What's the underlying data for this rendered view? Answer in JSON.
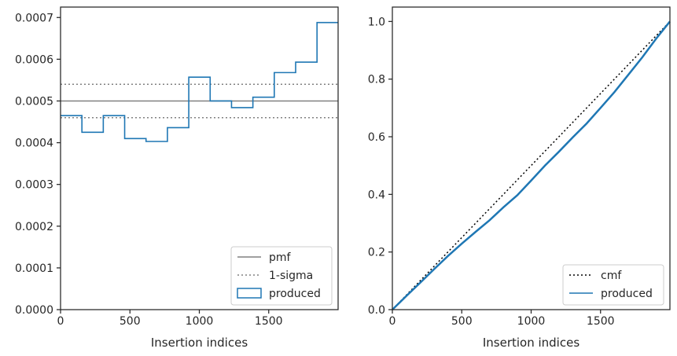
{
  "chart_data": [
    {
      "type": "step",
      "xlabel": "Insertion indices",
      "ylabel": "",
      "xlim": [
        0,
        2000
      ],
      "ylim": [
        0,
        0.000725
      ],
      "xticks": [
        0,
        500,
        1000,
        1500
      ],
      "xtick_labels": [
        "0",
        "500",
        "1000",
        "1500"
      ],
      "yticks": [
        0,
        0.0001,
        0.0002,
        0.0003,
        0.0004,
        0.0005,
        0.0006,
        0.0007
      ],
      "ytick_labels": [
        "0.0000",
        "0.0001",
        "0.0002",
        "0.0003",
        "0.0004",
        "0.0005",
        "0.0006",
        "0.0007"
      ],
      "legend_position": "lower right",
      "series": [
        {
          "name": "pmf",
          "kind": "hline",
          "value": 0.0005,
          "color": "#808080",
          "style": "solid"
        },
        {
          "name": "1-sigma",
          "kind": "hlines",
          "values": [
            0.00054,
            0.00046
          ],
          "color": "#808080",
          "style": "dotted"
        },
        {
          "name": "produced",
          "kind": "step",
          "color": "#1f77b4",
          "bin_edges": [
            0,
            154,
            308,
            462,
            616,
            770,
            924,
            1078,
            1232,
            1386,
            1540,
            1694,
            1848,
            2000
          ],
          "values": [
            0.000465,
            0.000425,
            0.000465,
            0.00041,
            0.000403,
            0.000436,
            0.000557,
            0.0005,
            0.000484,
            0.000509,
            0.000568,
            0.000593,
            0.000688
          ]
        }
      ]
    },
    {
      "type": "line",
      "xlabel": "Insertion indices",
      "ylabel": "",
      "xlim": [
        0,
        2000
      ],
      "ylim": [
        0,
        1.05
      ],
      "xticks": [
        0,
        500,
        1000,
        1500
      ],
      "xtick_labels": [
        "0",
        "500",
        "1000",
        "1500"
      ],
      "yticks": [
        0,
        0.2,
        0.4,
        0.6,
        0.8,
        1.0
      ],
      "ytick_labels": [
        "0.0",
        "0.2",
        "0.4",
        "0.6",
        "0.8",
        "1.0"
      ],
      "legend_position": "lower right",
      "series": [
        {
          "name": "cmf",
          "kind": "line",
          "color": "#000000",
          "style": "dotted",
          "x": [
            0,
            2000
          ],
          "y": [
            0,
            1.0
          ]
        },
        {
          "name": "produced",
          "kind": "line",
          "color": "#1f77b4",
          "x": [
            0,
            100,
            200,
            300,
            400,
            500,
            600,
            700,
            800,
            900,
            1000,
            1100,
            1200,
            1300,
            1400,
            1500,
            1600,
            1700,
            1800,
            1900,
            2000
          ],
          "y": [
            0,
            0.047,
            0.093,
            0.14,
            0.186,
            0.229,
            0.27,
            0.31,
            0.355,
            0.397,
            0.448,
            0.5,
            0.548,
            0.598,
            0.646,
            0.7,
            0.755,
            0.815,
            0.875,
            0.94,
            1.0
          ]
        }
      ]
    }
  ]
}
